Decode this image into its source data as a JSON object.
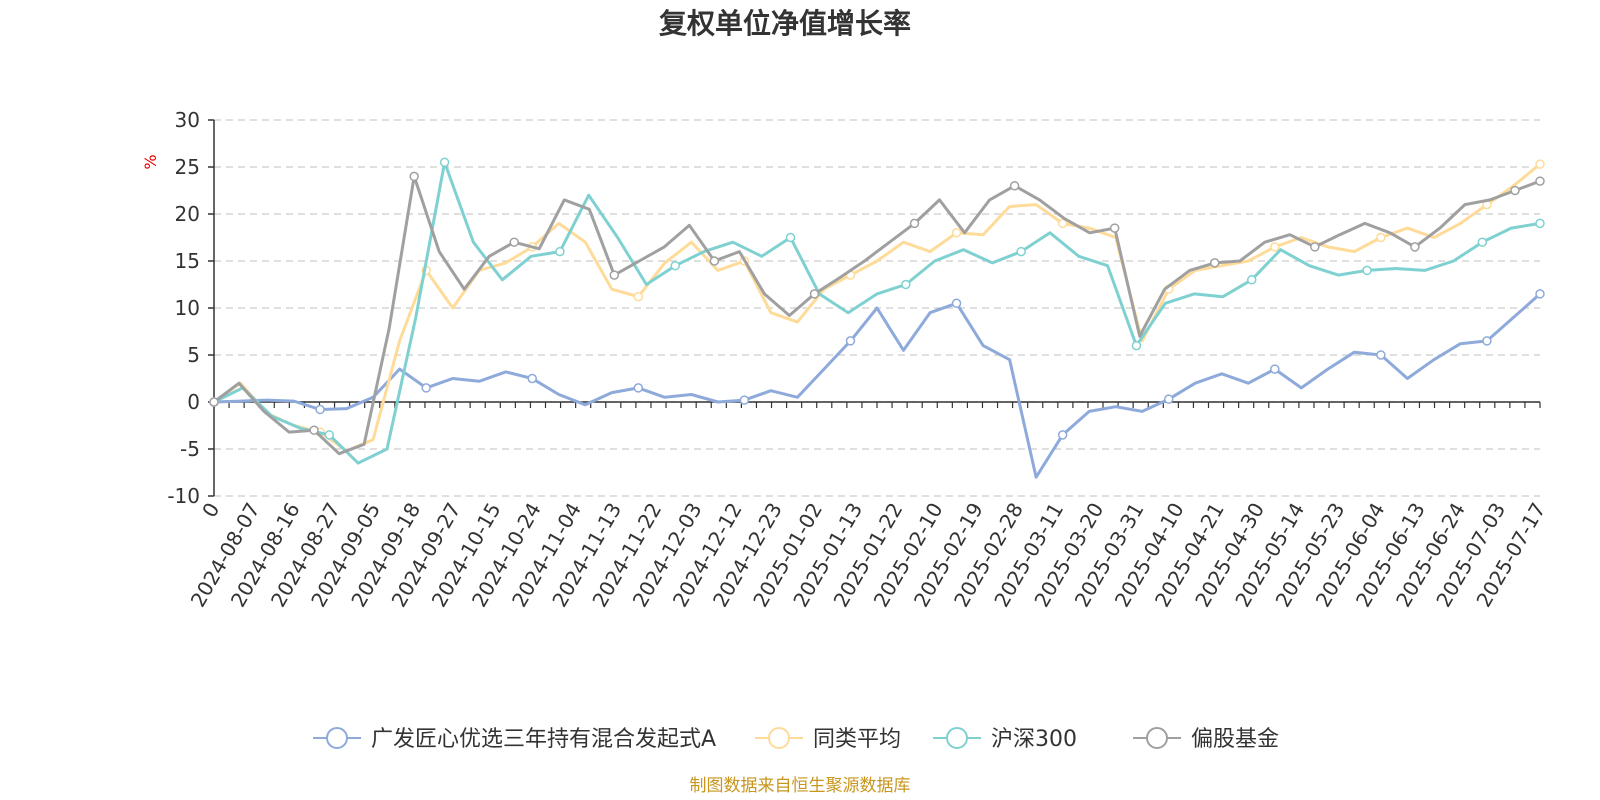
{
  "chart_data": {
    "type": "line",
    "title": "复权单位净值增长率",
    "unit_label": "%",
    "ylim": [
      -10,
      30
    ],
    "y_ticks": [
      "30",
      "25",
      "20",
      "15",
      "10",
      "5",
      "0",
      "-5",
      "-10"
    ],
    "x_tick_labels": [
      "0",
      "2024-08-07",
      "2024-08-16",
      "2024-08-27",
      "2024-09-05",
      "2024-09-18",
      "2024-09-27",
      "2024-10-15",
      "2024-10-24",
      "2024-11-04",
      "2024-11-13",
      "2024-11-22",
      "2024-12-03",
      "2024-12-12",
      "2024-12-23",
      "2025-01-02",
      "2025-01-13",
      "2025-01-22",
      "2025-02-10",
      "2025-02-19",
      "2025-02-28",
      "2025-03-11",
      "2025-03-20",
      "2025-03-31",
      "2025-04-10",
      "2025-04-21",
      "2025-04-30",
      "2025-05-14",
      "2025-05-23",
      "2025-06-04",
      "2025-06-13",
      "2025-06-24",
      "2025-07-03",
      "2025-07-17"
    ],
    "grid": "horizontal dashed",
    "legend_position": "bottom",
    "series": [
      {
        "name": "广发匠心优选三年持有混合发起式A",
        "color": "#8eaadb",
        "values": [
          0,
          0.1,
          0.2,
          0.1,
          -0.8,
          -0.7,
          0.5,
          3.5,
          1.5,
          2.5,
          2.2,
          3.2,
          2.5,
          0.8,
          -0.3,
          1.0,
          1.5,
          0.5,
          0.8,
          0,
          0.2,
          1.2,
          0.5,
          3.5,
          6.5,
          10,
          5.5,
          9.5,
          10.5,
          6,
          4.5,
          -8,
          -3.5,
          -1,
          -0.5,
          -1,
          0.3,
          2,
          3,
          2,
          3.5,
          1.5,
          3.5,
          5.3,
          5,
          2.5,
          4.5,
          6.2,
          6.5,
          9,
          11.5
        ]
      },
      {
        "name": "同类平均",
        "color": "#ffdb99",
        "values": [
          0,
          2,
          -1.2,
          -2.5,
          -3.2,
          -5.2,
          -4,
          6.5,
          14,
          10,
          14,
          14.8,
          16.5,
          19,
          17,
          12,
          11.2,
          14.8,
          17,
          14,
          15,
          9.5,
          8.5,
          12,
          13.5,
          15,
          17,
          16,
          18,
          17.8,
          20.8,
          21,
          19,
          18.5,
          17.5,
          6.5,
          12,
          14,
          14.5,
          15,
          16.5,
          17.5,
          16.5,
          16,
          17.5,
          18.5,
          17.5,
          19,
          21,
          23,
          25.3
        ]
      },
      {
        "name": "沪深300",
        "color": "#7fd1d1",
        "values": [
          0,
          1.5,
          -1.5,
          -2.8,
          -3.5,
          -6.5,
          -5,
          9,
          25.5,
          17,
          13,
          15.5,
          16,
          22,
          17.5,
          12.5,
          14.5,
          16,
          17,
          15.5,
          17.5,
          11.5,
          9.5,
          11.5,
          12.5,
          15,
          16.2,
          14.8,
          16,
          18,
          15.5,
          14.5,
          6,
          10.5,
          11.5,
          11.2,
          13,
          16.2,
          14.5,
          13.5,
          14,
          14.2,
          14,
          15,
          17,
          18.5,
          19
        ]
      },
      {
        "name": "偏股基金",
        "color": "#a0a0a0",
        "values": [
          0,
          2,
          -1,
          -3.2,
          -3,
          -5.5,
          -4.5,
          7.8,
          24,
          16,
          12,
          15.5,
          17,
          16.3,
          21.5,
          20.5,
          13.5,
          15,
          16.5,
          18.8,
          15,
          16,
          11.5,
          9.2,
          11.5,
          13.2,
          15,
          17,
          19,
          21.5,
          18,
          21.5,
          23,
          21.5,
          19.5,
          18,
          18.5,
          7,
          12,
          14,
          14.8,
          15,
          17,
          17.8,
          16.5,
          17.8,
          19,
          18,
          16.5,
          18.5,
          21,
          21.5,
          22.5,
          23.5
        ]
      }
    ]
  },
  "footer": {
    "source": "制图数据来自恒生聚源数据库"
  }
}
